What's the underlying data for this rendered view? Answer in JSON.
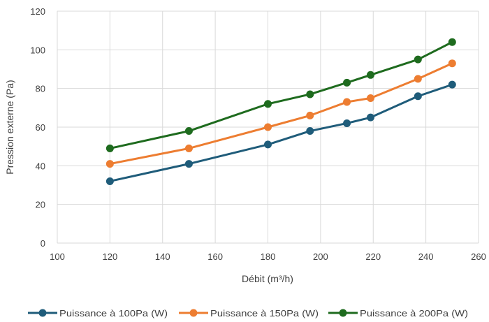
{
  "chart_data": {
    "type": "line",
    "title": "",
    "xlabel": "Débit (m³/h)",
    "ylabel": "Pression externe (Pa)",
    "xlim": [
      100,
      260
    ],
    "ylim": [
      0,
      120
    ],
    "xticks": [
      100,
      120,
      140,
      160,
      180,
      200,
      220,
      240,
      260
    ],
    "yticks": [
      0,
      20,
      40,
      60,
      80,
      100,
      120
    ],
    "grid": true,
    "legend_position": "bottom",
    "x": [
      120,
      150,
      180,
      196,
      210,
      219,
      237,
      250
    ],
    "series": [
      {
        "name": "Puissance à 100Pa (W)",
        "color": "#1f5c7a",
        "values": [
          32,
          41,
          51,
          58,
          62,
          65,
          76,
          82
        ]
      },
      {
        "name": "Puissance à 150Pa (W)",
        "color": "#ed7d31",
        "values": [
          41,
          49,
          60,
          66,
          73,
          75,
          85,
          93
        ]
      },
      {
        "name": "Puissance à 200Pa (W)",
        "color": "#1e6b1e",
        "values": [
          49,
          58,
          72,
          77,
          83,
          87,
          95,
          104
        ]
      }
    ]
  }
}
